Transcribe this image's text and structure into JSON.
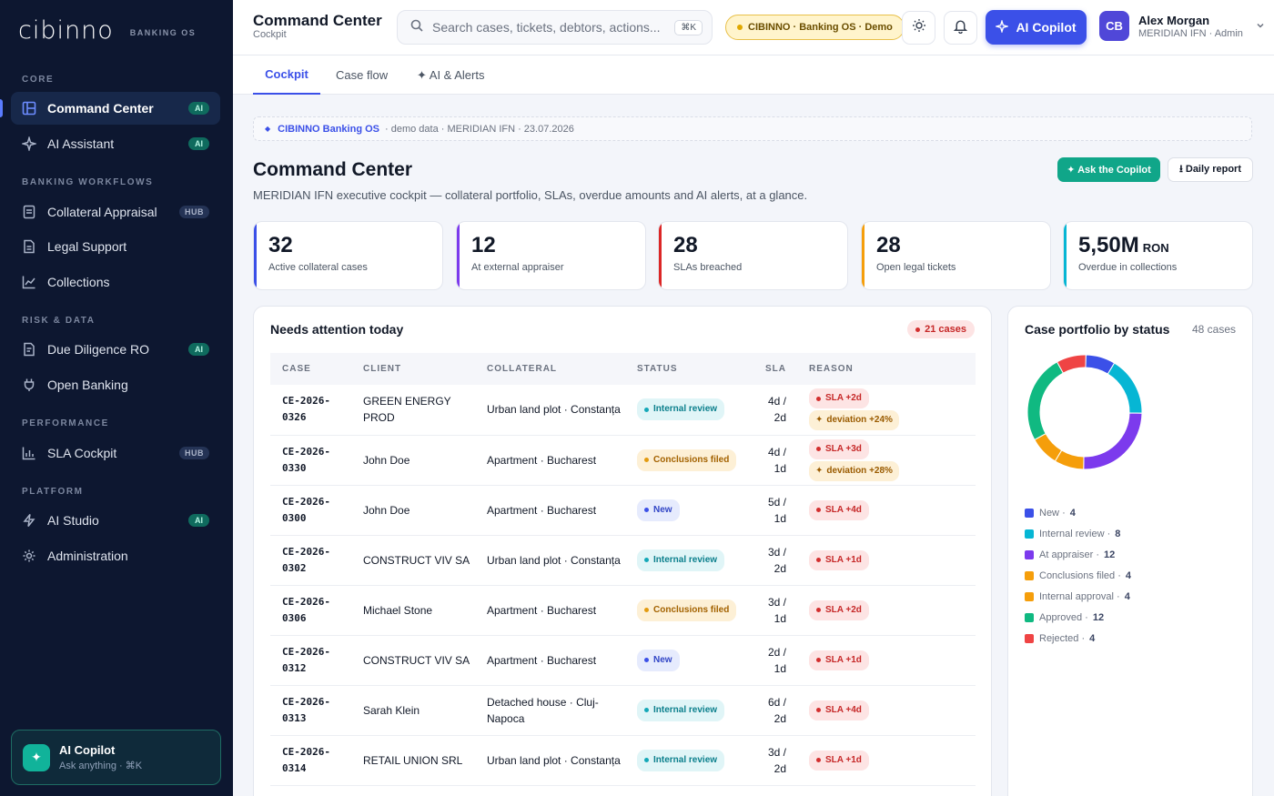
{
  "sidebar": {
    "logo": "cibinno",
    "logo_tag": "BANKING OS",
    "sections": {
      "core": "CORE",
      "workflows": "BANKING WORKFLOWS",
      "risk": "RISK & DATA",
      "performance": "PERFORMANCE",
      "platform": "PLATFORM"
    },
    "items": [
      {
        "label": "Command Center",
        "badge": "AI"
      },
      {
        "label": "AI Assistant",
        "badge": "AI"
      },
      {
        "label": "Collateral Appraisal",
        "badge": "HUB"
      },
      {
        "label": "Legal Support",
        "badge": ""
      },
      {
        "label": "Collections",
        "badge": ""
      },
      {
        "label": "Due Diligence RO",
        "badge": "AI"
      },
      {
        "label": "Open Banking",
        "badge": ""
      },
      {
        "label": "SLA Cockpit",
        "badge": "HUB"
      },
      {
        "label": "AI Studio",
        "badge": "AI"
      },
      {
        "label": "Administration",
        "badge": ""
      }
    ],
    "copilot": {
      "title": "AI Copilot",
      "subtitle": "Ask anything · ⌘K"
    }
  },
  "header": {
    "title": "Command Center",
    "subtitle": "Cockpit",
    "search_placeholder": "Search cases, tickets, debtors, actions...",
    "search_kbd": "⌘K",
    "demo_pill": "CIBINNO · Banking OS · Demo",
    "ai_button": "AI Copilot",
    "user": {
      "initials": "CB",
      "name": "Alex Morgan",
      "role": "MERIDIAN IFN · Admin"
    }
  },
  "tabs": [
    "Cockpit",
    "Case flow",
    "✦ AI & Alerts"
  ],
  "crumb": {
    "brand": "CIBINNO Banking OS",
    "meta": "· demo data · MERIDIAN IFN · 23.07.2026"
  },
  "page": {
    "title": "Command Center",
    "subtitle": "MERIDIAN IFN executive cockpit — collateral portfolio, SLAs, overdue amounts and AI alerts, at a glance.",
    "ask_button": "✦ Ask the Copilot",
    "report_button": "⭳ Daily report"
  },
  "kpis": [
    {
      "value": "32",
      "unit": "",
      "label": "Active collateral cases",
      "color": "#3b50e8"
    },
    {
      "value": "12",
      "unit": "",
      "label": "At external appraiser",
      "color": "#7c3aed"
    },
    {
      "value": "28",
      "unit": "",
      "label": "SLAs breached",
      "color": "#dc2626"
    },
    {
      "value": "28",
      "unit": "",
      "label": "Open legal tickets",
      "color": "#f59e0b"
    },
    {
      "value": "5,50M",
      "unit": "RON",
      "label": "Overdue in collections",
      "color": "#06b6d4"
    }
  ],
  "attention": {
    "title": "Needs attention today",
    "count": "21 cases",
    "columns": [
      "CASE",
      "CLIENT",
      "COLLATERAL",
      "STATUS",
      "SLA",
      "REASON"
    ],
    "rows": [
      {
        "case": "CE-2026-0326",
        "client": "GREEN ENERGY PROD",
        "collateral": "Urban land plot · Constanța",
        "status": "Internal review",
        "tone": "teal",
        "sla": "4d / 2d",
        "reasons": [
          "SLA +2d"
        ],
        "deviation": "deviation +24%"
      },
      {
        "case": "CE-2026-0330",
        "client": "John Doe",
        "collateral": "Apartment · Bucharest",
        "status": "Conclusions filed",
        "tone": "amber",
        "sla": "4d / 1d",
        "reasons": [
          "SLA +3d"
        ],
        "deviation": "deviation +28%"
      },
      {
        "case": "CE-2026-0300",
        "client": "John Doe",
        "collateral": "Apartment · Bucharest",
        "status": "New",
        "tone": "blue",
        "sla": "5d / 1d",
        "reasons": [
          "SLA +4d"
        ],
        "deviation": ""
      },
      {
        "case": "CE-2026-0302",
        "client": "CONSTRUCT VIV SA",
        "collateral": "Urban land plot · Constanța",
        "status": "Internal review",
        "tone": "teal",
        "sla": "3d / 2d",
        "reasons": [
          "SLA +1d"
        ],
        "deviation": ""
      },
      {
        "case": "CE-2026-0306",
        "client": "Michael Stone",
        "collateral": "Apartment · Bucharest",
        "status": "Conclusions filed",
        "tone": "amber",
        "sla": "3d / 1d",
        "reasons": [
          "SLA +2d"
        ],
        "deviation": ""
      },
      {
        "case": "CE-2026-0312",
        "client": "CONSTRUCT VIV SA",
        "collateral": "Apartment · Bucharest",
        "status": "New",
        "tone": "blue",
        "sla": "2d / 1d",
        "reasons": [
          "SLA +1d"
        ],
        "deviation": ""
      },
      {
        "case": "CE-2026-0313",
        "client": "Sarah Klein",
        "collateral": "Detached house · Cluj-Napoca",
        "status": "Internal review",
        "tone": "teal",
        "sla": "6d / 2d",
        "reasons": [
          "SLA +4d"
        ],
        "deviation": ""
      },
      {
        "case": "CE-2026-0314",
        "client": "RETAIL UNION SRL",
        "collateral": "Urban land plot · Constanța",
        "status": "Internal review",
        "tone": "teal",
        "sla": "3d / 2d",
        "reasons": [
          "SLA +1d"
        ],
        "deviation": ""
      }
    ]
  },
  "chart_data": {
    "type": "pie",
    "title": "Case portfolio by status",
    "total_label": "48 cases",
    "categories": [
      "New",
      "Internal review",
      "At appraiser",
      "Conclusions filed",
      "Internal approval",
      "Approved",
      "Rejected"
    ],
    "values": [
      4,
      8,
      12,
      4,
      4,
      12,
      4
    ],
    "colors": [
      "#3b50e8",
      "#06b6d4",
      "#7c3aed",
      "#f59e0b",
      "#f59e0b",
      "#10b981",
      "#ef4444"
    ],
    "legend": "bottom"
  }
}
